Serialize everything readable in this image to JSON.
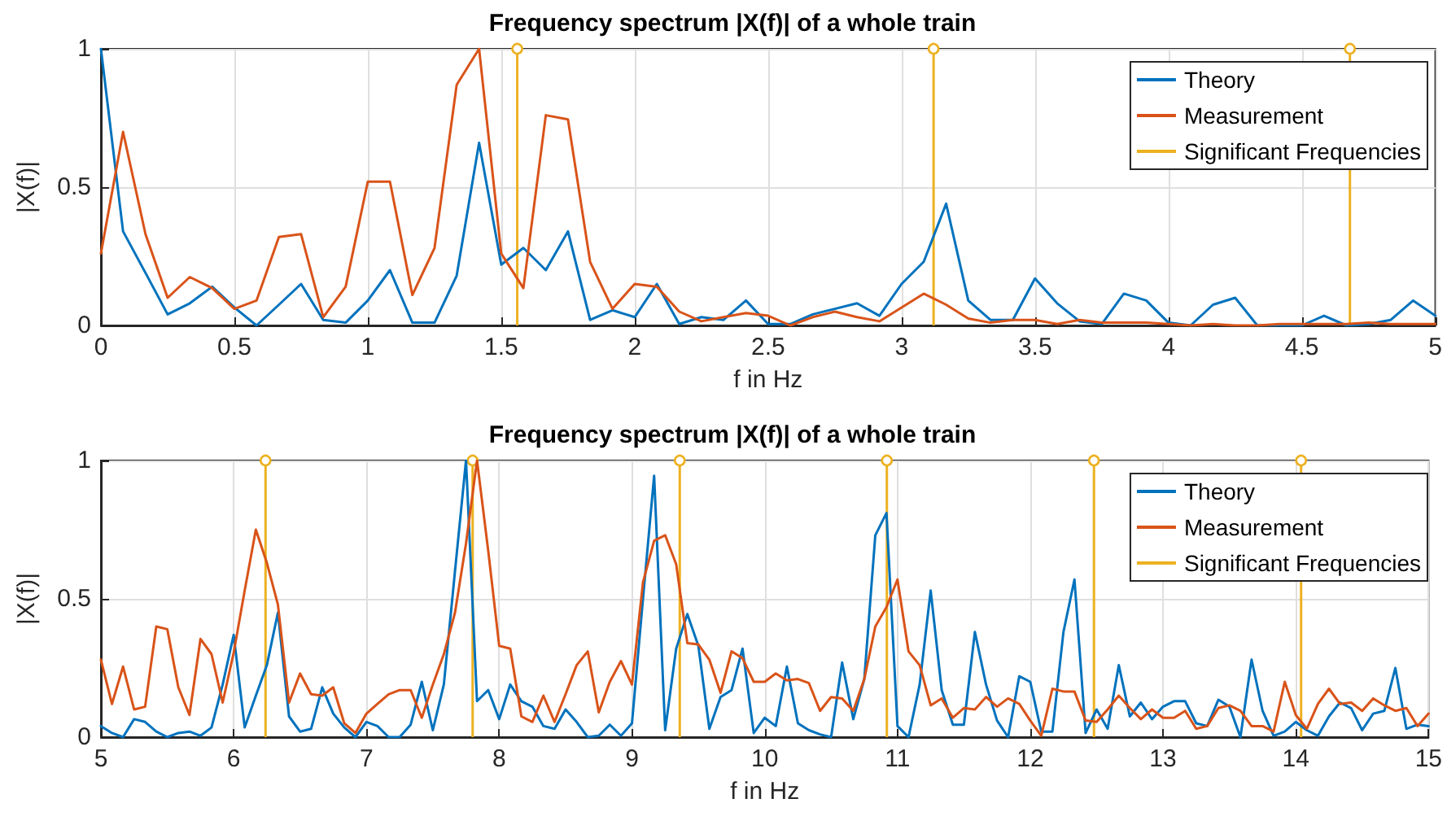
{
  "chart_data": [
    {
      "type": "line",
      "title": "Frequency spectrum |X(f)| of a whole train",
      "xlabel": "f in Hz",
      "ylabel": "|X(f)|",
      "x": [
        0,
        0.083,
        0.167,
        0.25,
        0.333,
        0.417,
        0.5,
        0.583,
        0.667,
        0.75,
        0.833,
        0.917,
        1,
        1.083,
        1.167,
        1.25,
        1.333,
        1.417,
        1.5,
        1.583,
        1.667,
        1.75,
        1.833,
        1.917,
        2,
        2.083,
        2.167,
        2.25,
        2.333,
        2.417,
        2.5,
        2.583,
        2.667,
        2.75,
        2.833,
        2.917,
        3,
        3.083,
        3.167,
        3.25,
        3.333,
        3.417,
        3.5,
        3.583,
        3.667,
        3.75,
        3.833,
        3.917,
        4,
        4.083,
        4.167,
        4.25,
        4.333,
        4.417,
        4.5,
        4.583,
        4.667,
        4.75,
        4.833,
        4.917,
        5
      ],
      "series": [
        {
          "name": "Theory",
          "color": "#0072bd",
          "values": [
            1.0,
            0.34,
            0.19,
            0.04,
            0.08,
            0.14,
            0.065,
            0.0,
            0.075,
            0.15,
            0.02,
            0.01,
            0.09,
            0.2,
            0.01,
            0.01,
            0.18,
            0.66,
            0.22,
            0.28,
            0.2,
            0.34,
            0.02,
            0.055,
            0.03,
            0.15,
            0.005,
            0.03,
            0.02,
            0.09,
            0.005,
            0.005,
            0.04,
            0.06,
            0.08,
            0.035,
            0.15,
            0.23,
            0.44,
            0.09,
            0.02,
            0.02,
            0.17,
            0.08,
            0.015,
            0.005,
            0.115,
            0.09,
            0.01,
            0.0,
            0.075,
            0.1,
            0.0,
            0.0,
            0.0,
            0.035,
            0.0,
            0.005,
            0.02,
            0.09,
            0.035
          ]
        },
        {
          "name": "Measurement",
          "color": "#d95319",
          "values": [
            0.26,
            0.7,
            0.33,
            0.1,
            0.175,
            0.135,
            0.06,
            0.09,
            0.32,
            0.33,
            0.03,
            0.14,
            0.52,
            0.52,
            0.11,
            0.28,
            0.87,
            1.0,
            0.26,
            0.135,
            0.76,
            0.745,
            0.23,
            0.06,
            0.15,
            0.14,
            0.05,
            0.015,
            0.03,
            0.045,
            0.035,
            0.0,
            0.03,
            0.05,
            0.03,
            0.015,
            0.065,
            0.115,
            0.075,
            0.025,
            0.01,
            0.02,
            0.02,
            0.005,
            0.02,
            0.01,
            0.01,
            0.01,
            0.005,
            0.0,
            0.005,
            0.0,
            0.0,
            0.005,
            0.005,
            0.005,
            0.005,
            0.01,
            0.005,
            0.005,
            0.005
          ]
        },
        {
          "name": "Significant Frequencies",
          "type": "lollipop",
          "marker": "circle",
          "color": "#edb120",
          "x": [
            1.56,
            3.12,
            4.68
          ],
          "values": [
            1,
            1,
            1
          ]
        }
      ],
      "xlim": [
        0,
        5
      ],
      "xticks": [
        0,
        0.5,
        1,
        1.5,
        2,
        2.5,
        3,
        3.5,
        4,
        4.5,
        5
      ],
      "ylim": [
        0,
        1
      ],
      "yticks": [
        0,
        0.5,
        1
      ],
      "grid": true,
      "legend": "top right"
    },
    {
      "type": "line",
      "title": "Frequency spectrum |X(f)| of a whole train",
      "xlabel": "f in Hz",
      "ylabel": "|X(f)|",
      "x": [
        5,
        5.083,
        5.167,
        5.25,
        5.333,
        5.417,
        5.5,
        5.583,
        5.667,
        5.75,
        5.833,
        5.917,
        6,
        6.083,
        6.167,
        6.25,
        6.333,
        6.417,
        6.5,
        6.583,
        6.667,
        6.75,
        6.833,
        6.917,
        7,
        7.083,
        7.167,
        7.25,
        7.333,
        7.417,
        7.5,
        7.583,
        7.667,
        7.75,
        7.833,
        7.917,
        8,
        8.083,
        8.167,
        8.25,
        8.333,
        8.417,
        8.5,
        8.583,
        8.667,
        8.75,
        8.833,
        8.917,
        9,
        9.083,
        9.167,
        9.25,
        9.333,
        9.417,
        9.5,
        9.583,
        9.667,
        9.75,
        9.833,
        9.917,
        10,
        10.083,
        10.167,
        10.25,
        10.333,
        10.417,
        10.5,
        10.583,
        10.667,
        10.75,
        10.833,
        10.917,
        11,
        11.083,
        11.167,
        11.25,
        11.333,
        11.417,
        11.5,
        11.583,
        11.667,
        11.75,
        11.833,
        11.917,
        12,
        12.083,
        12.167,
        12.25,
        12.333,
        12.417,
        12.5,
        12.583,
        12.667,
        12.75,
        12.833,
        12.917,
        13,
        13.083,
        13.167,
        13.25,
        13.333,
        13.417,
        13.5,
        13.583,
        13.667,
        13.75,
        13.833,
        13.917,
        14,
        14.083,
        14.167,
        14.25,
        14.333,
        14.417,
        14.5,
        14.583,
        14.667,
        14.75,
        14.833,
        14.917,
        15
      ],
      "series": [
        {
          "name": "Theory",
          "color": "#0072bd",
          "values": [
            0.04,
            0.015,
            0.0,
            0.065,
            0.055,
            0.02,
            0.0,
            0.015,
            0.02,
            0.005,
            0.035,
            0.19,
            0.37,
            0.035,
            0.15,
            0.26,
            0.45,
            0.075,
            0.02,
            0.03,
            0.18,
            0.085,
            0.035,
            0.0,
            0.055,
            0.04,
            0.0,
            0.0,
            0.045,
            0.2,
            0.025,
            0.19,
            0.6,
            1.0,
            0.13,
            0.17,
            0.065,
            0.19,
            0.13,
            0.11,
            0.04,
            0.03,
            0.1,
            0.055,
            0.0,
            0.005,
            0.045,
            0.005,
            0.05,
            0.5,
            0.945,
            0.025,
            0.32,
            0.445,
            0.33,
            0.03,
            0.145,
            0.17,
            0.32,
            0.015,
            0.07,
            0.04,
            0.255,
            0.05,
            0.025,
            0.01,
            0.0,
            0.27,
            0.065,
            0.21,
            0.73,
            0.81,
            0.04,
            0.0,
            0.19,
            0.53,
            0.17,
            0.045,
            0.045,
            0.38,
            0.19,
            0.06,
            0.0,
            0.22,
            0.2,
            0.02,
            0.02,
            0.38,
            0.57,
            0.015,
            0.1,
            0.03,
            0.26,
            0.075,
            0.125,
            0.065,
            0.11,
            0.13,
            0.13,
            0.05,
            0.04,
            0.135,
            0.11,
            0.0,
            0.28,
            0.095,
            0.005,
            0.02,
            0.055,
            0.025,
            0.005,
            0.075,
            0.125,
            0.105,
            0.025,
            0.085,
            0.095,
            0.25,
            0.03,
            0.045,
            0.04
          ]
        },
        {
          "name": "Measurement",
          "color": "#d95319",
          "values": [
            0.28,
            0.12,
            0.255,
            0.1,
            0.11,
            0.4,
            0.39,
            0.18,
            0.08,
            0.355,
            0.3,
            0.125,
            0.305,
            0.53,
            0.75,
            0.63,
            0.48,
            0.125,
            0.23,
            0.155,
            0.15,
            0.18,
            0.05,
            0.015,
            0.085,
            0.12,
            0.155,
            0.17,
            0.17,
            0.07,
            0.19,
            0.3,
            0.45,
            0.7,
            1.0,
            0.675,
            0.33,
            0.32,
            0.075,
            0.055,
            0.15,
            0.055,
            0.155,
            0.26,
            0.31,
            0.09,
            0.2,
            0.275,
            0.19,
            0.56,
            0.71,
            0.73,
            0.625,
            0.34,
            0.335,
            0.28,
            0.16,
            0.31,
            0.285,
            0.2,
            0.2,
            0.23,
            0.205,
            0.21,
            0.195,
            0.095,
            0.145,
            0.14,
            0.095,
            0.21,
            0.4,
            0.47,
            0.57,
            0.31,
            0.26,
            0.115,
            0.14,
            0.07,
            0.105,
            0.1,
            0.145,
            0.11,
            0.14,
            0.12,
            0.06,
            0.005,
            0.175,
            0.165,
            0.165,
            0.06,
            0.055,
            0.1,
            0.15,
            0.105,
            0.065,
            0.1,
            0.07,
            0.07,
            0.095,
            0.03,
            0.04,
            0.105,
            0.115,
            0.095,
            0.04,
            0.04,
            0.02,
            0.2,
            0.08,
            0.03,
            0.12,
            0.175,
            0.12,
            0.125,
            0.095,
            0.14,
            0.115,
            0.095,
            0.105,
            0.04,
            0.085
          ]
        },
        {
          "name": "Significant Frequencies",
          "type": "lollipop",
          "marker": "circle",
          "color": "#edb120",
          "x": [
            6.24,
            7.8,
            9.36,
            10.92,
            12.48,
            14.04
          ],
          "values": [
            1,
            1,
            1,
            1,
            1,
            1
          ]
        }
      ],
      "xlim": [
        5,
        15
      ],
      "xticks": [
        5,
        6,
        7,
        8,
        9,
        10,
        11,
        12,
        13,
        14,
        15
      ],
      "ylim": [
        0,
        1
      ],
      "yticks": [
        0,
        0.5,
        1
      ],
      "grid": true,
      "legend": "top right"
    }
  ]
}
